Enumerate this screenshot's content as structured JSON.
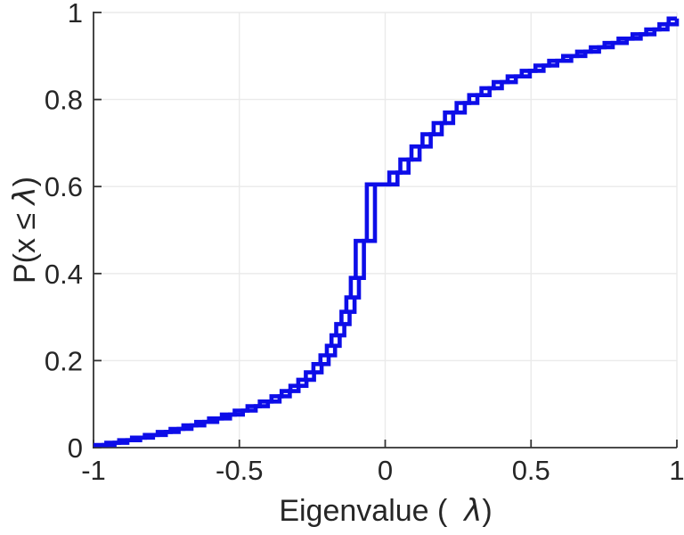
{
  "chart_data": {
    "type": "line",
    "subtype": "empirical-cdf-stairs",
    "title": "",
    "xlabel": {
      "prefix": "Eigenvalue (  ",
      "symbol": "λ",
      "suffix": ")"
    },
    "ylabel": {
      "prefix": "P(x ≤ ",
      "symbol": "λ",
      "suffix": ")"
    },
    "xlim": [
      -1,
      1
    ],
    "ylim": [
      0,
      1
    ],
    "xticks": [
      -1,
      -0.5,
      0,
      0.5,
      1
    ],
    "xtick_labels": [
      "-1",
      "-0.5",
      "0",
      "0.5",
      "1"
    ],
    "yticks": [
      0,
      0.2,
      0.4,
      0.6,
      0.8,
      1
    ],
    "ytick_labels": [
      "0",
      "0.2",
      "0.4",
      "0.6",
      "0.8",
      "1"
    ],
    "grid": true,
    "legend": "none",
    "line_color": "#0d0de8",
    "axis_color": "#333333",
    "grid_color": "#eaeaea",
    "tick_label_color": "#262626",
    "series": [
      {
        "id": "eigenvalue-cdf-1",
        "x_offset": 0
      },
      {
        "id": "eigenvalue-cdf-2",
        "x_offset": 0.028
      }
    ],
    "step_points": [
      [
        -1.0,
        0.006
      ],
      [
        -0.956,
        0.011
      ],
      [
        -0.912,
        0.017
      ],
      [
        -0.868,
        0.023
      ],
      [
        -0.824,
        0.029
      ],
      [
        -0.78,
        0.036
      ],
      [
        -0.736,
        0.043
      ],
      [
        -0.692,
        0.051
      ],
      [
        -0.648,
        0.059
      ],
      [
        -0.604,
        0.067
      ],
      [
        -0.56,
        0.076
      ],
      [
        -0.516,
        0.085
      ],
      [
        -0.472,
        0.095
      ],
      [
        -0.43,
        0.106
      ],
      [
        -0.39,
        0.118
      ],
      [
        -0.355,
        0.13
      ],
      [
        -0.325,
        0.142
      ],
      [
        -0.298,
        0.156
      ],
      [
        -0.272,
        0.173
      ],
      [
        -0.246,
        0.192
      ],
      [
        -0.222,
        0.212
      ],
      [
        -0.2,
        0.234
      ],
      [
        -0.184,
        0.258
      ],
      [
        -0.168,
        0.284
      ],
      [
        -0.15,
        0.312
      ],
      [
        -0.133,
        0.345
      ],
      [
        -0.118,
        0.39
      ],
      [
        -0.101,
        0.475
      ],
      [
        -0.063,
        0.605
      ],
      [
        0.014,
        0.632
      ],
      [
        0.052,
        0.662
      ],
      [
        0.09,
        0.692
      ],
      [
        0.128,
        0.72
      ],
      [
        0.166,
        0.746
      ],
      [
        0.205,
        0.77
      ],
      [
        0.245,
        0.792
      ],
      [
        0.288,
        0.81
      ],
      [
        0.33,
        0.826
      ],
      [
        0.372,
        0.84
      ],
      [
        0.42,
        0.853
      ],
      [
        0.468,
        0.866
      ],
      [
        0.515,
        0.878
      ],
      [
        0.562,
        0.889
      ],
      [
        0.61,
        0.9
      ],
      [
        0.658,
        0.91
      ],
      [
        0.705,
        0.92
      ],
      [
        0.752,
        0.93
      ],
      [
        0.8,
        0.94
      ],
      [
        0.848,
        0.95
      ],
      [
        0.895,
        0.961
      ],
      [
        0.94,
        0.973
      ],
      [
        0.972,
        0.986
      ]
    ]
  }
}
